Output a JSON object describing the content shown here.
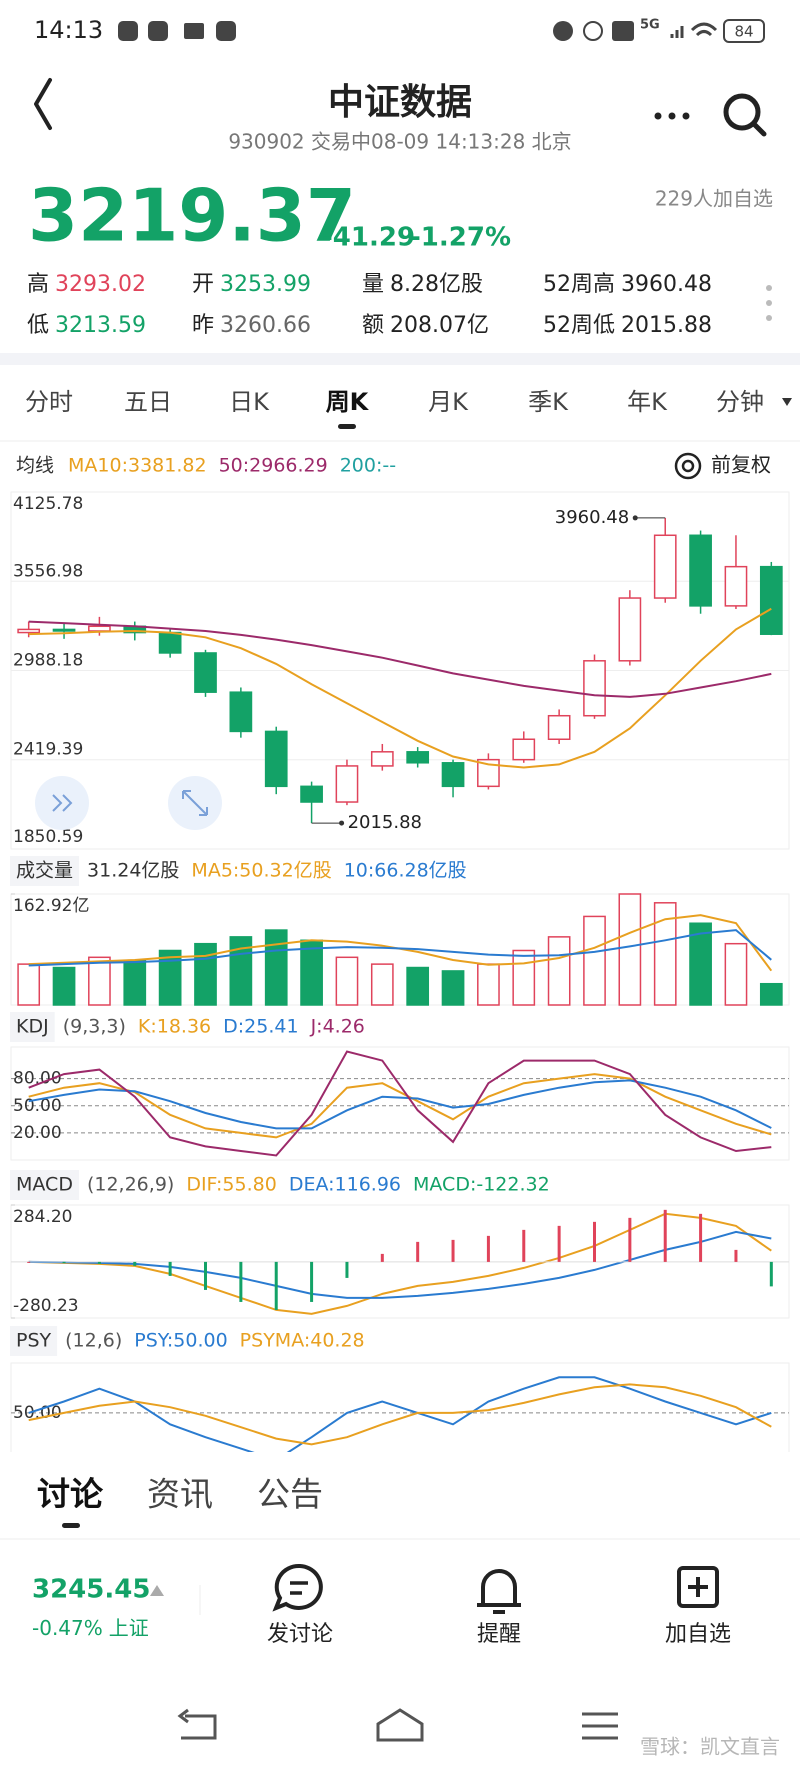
{
  "status": {
    "time": "14:13",
    "network": "5G",
    "battery": "84"
  },
  "header": {
    "title": "中证数据",
    "subtitle": "930902 交易中08-09 14:13:28 北京"
  },
  "quote": {
    "price": 3219.37,
    "change": -41.29,
    "change_pct": "-1.27%",
    "watchers": "229人加自选",
    "stats": [
      {
        "label": "高",
        "value": 3293.02,
        "color": "#e0435a"
      },
      {
        "label": "开",
        "value": 3253.99,
        "color": "#13a267"
      },
      {
        "label": "量",
        "value": "8.28亿股",
        "color": "#222222"
      },
      {
        "label": "52周高",
        "value": 3960.48,
        "color": "#222222"
      },
      {
        "label": "低",
        "value": 3213.59,
        "color": "#13a267"
      },
      {
        "label": "昨",
        "value": 3260.66,
        "color": "#666666"
      },
      {
        "label": "额",
        "value": "208.07亿",
        "color": "#222222"
      },
      {
        "label": "52周低",
        "value": 2015.88,
        "color": "#222222"
      }
    ]
  },
  "tabs": {
    "items": [
      "分时",
      "五日",
      "日K",
      "周K",
      "月K",
      "季K",
      "年K",
      "分钟"
    ],
    "active": 3
  },
  "chart_data": [
    {
      "type": "candlestick",
      "title": "均线",
      "adjust": "前复权",
      "up_color": "#e0435a",
      "down_color": "#13a267",
      "open": [
        3230,
        3250,
        3240,
        3270,
        3230,
        3100,
        2850,
        2600,
        2250,
        2150,
        2380,
        2470,
        2400,
        2250,
        2420,
        2550,
        2700,
        3050,
        3450,
        3850,
        3400,
        3650
      ],
      "high": [
        3300,
        3290,
        3330,
        3300,
        3250,
        3120,
        2880,
        2630,
        2280,
        2420,
        2520,
        2500,
        2420,
        2460,
        2600,
        2740,
        3090,
        3500,
        3960.48,
        3880,
        3850,
        3680
      ],
      "low": [
        3200,
        3190,
        3210,
        3180,
        3070,
        2820,
        2560,
        2200,
        2015.88,
        2130,
        2350,
        2370,
        2180,
        2230,
        2400,
        2520,
        2680,
        3020,
        3420,
        3350,
        3380,
        3213.59
      ],
      "close": [
        3250,
        3240,
        3270,
        3230,
        3100,
        2850,
        2600,
        2250,
        2150,
        2380,
        2470,
        2400,
        2250,
        2420,
        2550,
        2700,
        3050,
        3450,
        3850,
        3400,
        3650,
        3219.37
      ],
      "series": [
        {
          "name": "MA10:3381.82",
          "color": "#e8a020",
          "values": [
            3220,
            3225,
            3235,
            3240,
            3230,
            3200,
            3130,
            3030,
            2900,
            2780,
            2660,
            2540,
            2440,
            2390,
            2370,
            2390,
            2470,
            2620,
            2830,
            3050,
            3250,
            3381.82
          ]
        },
        {
          "name": "50:2966.29",
          "color": "#9c2a6a",
          "values": [
            3300,
            3290,
            3280,
            3270,
            3255,
            3240,
            3215,
            3185,
            3150,
            3110,
            3070,
            3020,
            2970,
            2930,
            2890,
            2860,
            2830,
            2820,
            2840,
            2880,
            2920,
            2966.29
          ]
        },
        {
          "name": "200:--",
          "color": "#20a0a0",
          "values": [
            null,
            null,
            null,
            null,
            null,
            null,
            null,
            null,
            null,
            null,
            null,
            null,
            null,
            null,
            null,
            null,
            null,
            null,
            null,
            null,
            null,
            null
          ]
        }
      ],
      "ylim": [
        1850.59,
        4125.78
      ],
      "yticks": [
        4125.78,
        3556.98,
        2988.18,
        2419.39,
        1850.59
      ],
      "grid": true
    },
    {
      "type": "bar",
      "title": "成交量",
      "current": "31.24亿股",
      "values": [
        60,
        55,
        70,
        65,
        80,
        90,
        100,
        110,
        95,
        70,
        60,
        55,
        50,
        60,
        80,
        100,
        130,
        162.92,
        150,
        120,
        90,
        31.24
      ],
      "series": [
        {
          "name": "MA5:50.32亿股",
          "color": "#e8a020",
          "values": [
            60,
            62,
            64,
            66,
            70,
            72,
            83,
            89,
            95,
            93,
            87,
            78,
            66,
            59,
            61,
            69,
            84,
            106,
            126,
            132,
            120,
            50.32
          ]
        },
        {
          "name": "10:66.28亿股",
          "color": "#2a7bd0",
          "values": [
            58,
            60,
            62,
            63,
            65,
            68,
            75,
            80,
            83,
            85,
            84,
            82,
            78,
            74,
            72,
            73,
            78,
            86,
            95,
            105,
            110,
            66.28
          ]
        }
      ],
      "ylim": [
        0,
        162.92
      ],
      "yticks": [
        {
          "value": 162.92,
          "label": "162.92亿"
        }
      ]
    },
    {
      "type": "line",
      "title": "KDJ",
      "params": "(9,3,3)",
      "series": [
        {
          "name": "K:18.36",
          "color": "#e8a020",
          "values": [
            60,
            70,
            75,
            65,
            40,
            25,
            20,
            15,
            30,
            70,
            75,
            55,
            35,
            60,
            75,
            80,
            85,
            80,
            60,
            45,
            30,
            18.36
          ]
        },
        {
          "name": "D:25.41",
          "color": "#2a7bd0",
          "values": [
            55,
            62,
            68,
            66,
            55,
            42,
            32,
            25,
            25,
            45,
            60,
            58,
            48,
            52,
            62,
            70,
            76,
            78,
            70,
            60,
            45,
            25.41
          ]
        },
        {
          "name": "J:4.26",
          "color": "#9c2a6a",
          "values": [
            70,
            85,
            90,
            60,
            15,
            5,
            0,
            -5,
            40,
            110,
            100,
            45,
            10,
            75,
            100,
            100,
            100,
            85,
            40,
            15,
            0,
            4.26
          ]
        }
      ],
      "ylim": [
        -10,
        115
      ],
      "yticks": [
        {
          "value": 80,
          "label": "80.00"
        },
        {
          "value": 50,
          "label": "50.00"
        },
        {
          "value": 20,
          "label": "20.00"
        }
      ],
      "grid": true
    },
    {
      "type": "line",
      "title": "MACD",
      "params": "(12,26,9)",
      "up_color": "#e0435a",
      "down_color": "#13a267",
      "series": [
        {
          "name": "DIF:55.80",
          "color": "#e8a020",
          "values": [
            0,
            -5,
            -10,
            -20,
            -60,
            -120,
            -180,
            -240,
            -260,
            -220,
            -160,
            -120,
            -100,
            -70,
            -30,
            20,
            80,
            160,
            240,
            220,
            180,
            55.8
          ]
        },
        {
          "name": "DEA:116.96",
          "color": "#2a7bd0",
          "values": [
            0,
            -2,
            -5,
            -10,
            -25,
            -50,
            -80,
            -120,
            -160,
            -180,
            -180,
            -170,
            -155,
            -135,
            -110,
            -80,
            -40,
            10,
            60,
            100,
            150,
            116.96
          ]
        },
        {
          "name": "MACD:-122.32",
          "color": "#13a267",
          "style": "bar",
          "values": [
            0,
            -6,
            -10,
            -20,
            -70,
            -140,
            -200,
            -240,
            -200,
            -80,
            40,
            100,
            110,
            130,
            160,
            180,
            200,
            220,
            260,
            240,
            60,
            -122.32
          ]
        }
      ],
      "ylim": [
        -280.23,
        284.2
      ],
      "yticks": [
        {
          "value": 284.2,
          "label": "284.20"
        },
        {
          "value": -280.23,
          "label": "-280.23"
        }
      ]
    },
    {
      "type": "line",
      "title": "PSY",
      "params": "(12,6)",
      "series": [
        {
          "name": "PSY:50.00",
          "color": "#2a7bd0",
          "values": [
            50,
            58,
            67,
            58,
            42,
            33,
            25,
            17,
            33,
            50,
            58,
            50,
            42,
            58,
            67,
            75,
            75,
            67,
            58,
            50,
            42,
            50
          ]
        },
        {
          "name": "PSYMA:40.28",
          "color": "#e8a020",
          "values": [
            45,
            50,
            55,
            58,
            54,
            48,
            40,
            32,
            28,
            33,
            42,
            50,
            50,
            52,
            57,
            63,
            68,
            70,
            68,
            62,
            54,
            40.28
          ]
        }
      ],
      "ylim": [
        10,
        85
      ],
      "yticks": [
        {
          "value": 50,
          "label": "50.00"
        }
      ],
      "grid": true
    }
  ],
  "bottom_tabs": {
    "items": [
      "讨论",
      "资讯",
      "公告"
    ],
    "active": 0
  },
  "index": {
    "price": 3245.45,
    "change_pct": "-0.47%",
    "name": "上证"
  },
  "actions": [
    "发讨论",
    "提醒",
    "加自选"
  ],
  "watermark": "雪球：凯文直言"
}
